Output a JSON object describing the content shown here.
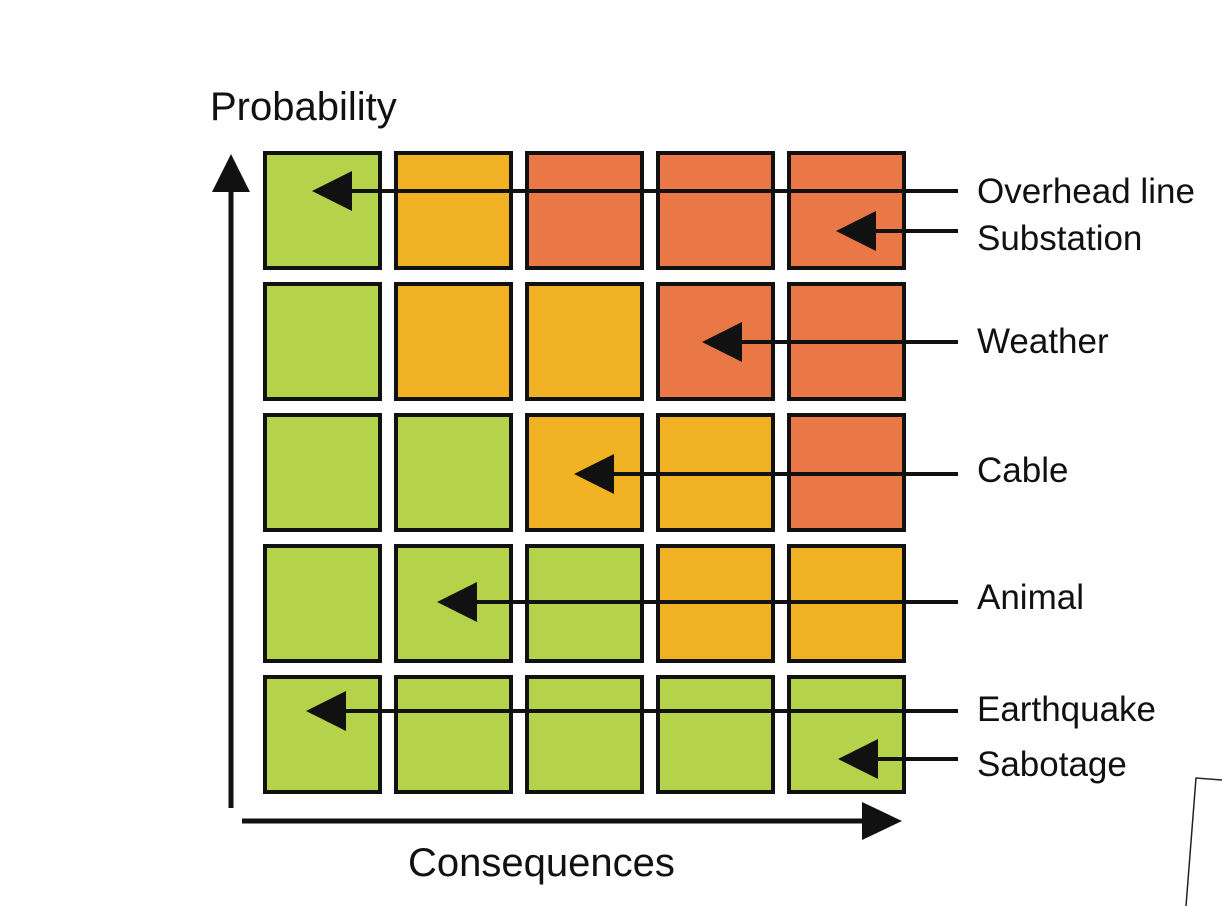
{
  "axes": {
    "y_title": "Probability",
    "x_title": "Consequences"
  },
  "colors": {
    "green": "#b5d24b",
    "yellow": "#f0b123",
    "red": "#e97846",
    "stroke": "#111111"
  },
  "matrix": {
    "rows": 5,
    "cols": 5,
    "levels": [
      [
        "green",
        "yellow",
        "red",
        "red",
        "red"
      ],
      [
        "green",
        "yellow",
        "yellow",
        "red",
        "red"
      ],
      [
        "green",
        "green",
        "yellow",
        "yellow",
        "red"
      ],
      [
        "green",
        "green",
        "green",
        "yellow",
        "yellow"
      ],
      [
        "green",
        "green",
        "green",
        "green",
        "green"
      ]
    ]
  },
  "risks": [
    {
      "label": "Overhead line",
      "probability": 5,
      "consequence": 1
    },
    {
      "label": "Substation",
      "probability": 5,
      "consequence": 5
    },
    {
      "label": "Weather",
      "probability": 4,
      "consequence": 4
    },
    {
      "label": "Cable",
      "probability": 3,
      "consequence": 3
    },
    {
      "label": "Animal",
      "probability": 2,
      "consequence": 2
    },
    {
      "label": "Earthquake",
      "probability": 1,
      "consequence": 1
    },
    {
      "label": "Sabotage",
      "probability": 1,
      "consequence": 5
    }
  ]
}
